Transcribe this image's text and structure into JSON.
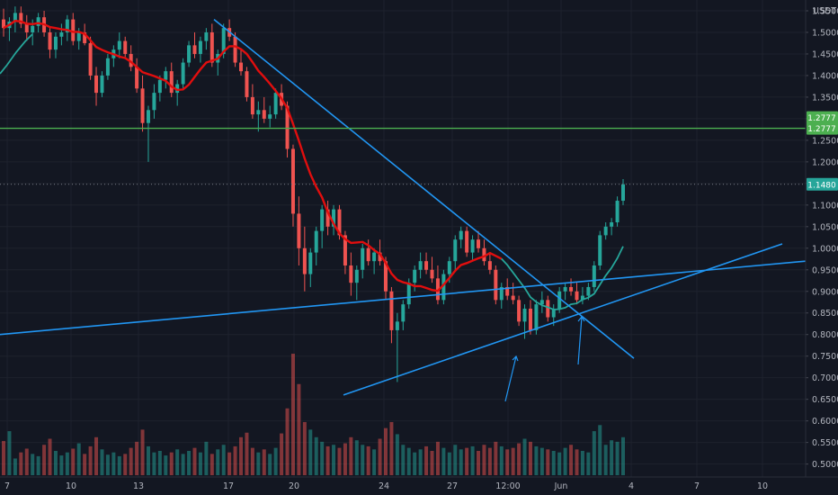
{
  "chart_data": {
    "type": "candlestick",
    "quote_unit": "USDT",
    "current_price": "1.1480",
    "horizontal_level": "1.2777",
    "colors": {
      "background": "#131722",
      "up": "#26a69a",
      "down": "#ef5350",
      "moving_average": "#e10e0e",
      "moving_average_2": "#26a69a",
      "trendline": "#2196f3",
      "level_line": "#4caf50",
      "price_tag": "#26a69a"
    },
    "y_ticks": [
      "1.5500",
      "1.5000",
      "1.4500",
      "1.4000",
      "1.3500",
      "1.3000",
      "1.2500",
      "1.2000",
      "1.1500",
      "1.1000",
      "1.0500",
      "1.0000",
      "0.9500",
      "0.9000",
      "0.8500",
      "0.8000",
      "0.7500",
      "0.7000",
      "0.6500",
      "0.6000",
      "0.5500",
      "0.5000"
    ],
    "x_ticks": [
      "7",
      "10",
      "13",
      "17",
      "20",
      "24",
      "27",
      "12:00",
      "Jun",
      "4",
      "7",
      "10"
    ],
    "ylim": [
      0.47,
      1.575
    ],
    "candles": [
      [
        1.53,
        1.555,
        1.49,
        1.51
      ],
      [
        1.51,
        1.535,
        1.48,
        1.525
      ],
      [
        1.525,
        1.56,
        1.5,
        1.545
      ],
      [
        1.545,
        1.56,
        1.51,
        1.52
      ],
      [
        1.52,
        1.54,
        1.48,
        1.5
      ],
      [
        1.5,
        1.53,
        1.47,
        1.515
      ],
      [
        1.515,
        1.545,
        1.5,
        1.535
      ],
      [
        1.535,
        1.55,
        1.49,
        1.5
      ],
      [
        1.5,
        1.51,
        1.44,
        1.46
      ],
      [
        1.46,
        1.5,
        1.44,
        1.49
      ],
      [
        1.49,
        1.52,
        1.47,
        1.5
      ],
      [
        1.5,
        1.54,
        1.48,
        1.53
      ],
      [
        1.53,
        1.545,
        1.47,
        1.48
      ],
      [
        1.48,
        1.51,
        1.46,
        1.5
      ],
      [
        1.5,
        1.52,
        1.47,
        1.475
      ],
      [
        1.475,
        1.49,
        1.39,
        1.4
      ],
      [
        1.4,
        1.42,
        1.33,
        1.36
      ],
      [
        1.36,
        1.41,
        1.35,
        1.4
      ],
      [
        1.4,
        1.45,
        1.39,
        1.44
      ],
      [
        1.44,
        1.47,
        1.42,
        1.46
      ],
      [
        1.46,
        1.5,
        1.44,
        1.48
      ],
      [
        1.48,
        1.49,
        1.44,
        1.45
      ],
      [
        1.45,
        1.47,
        1.41,
        1.42
      ],
      [
        1.42,
        1.44,
        1.36,
        1.37
      ],
      [
        1.37,
        1.4,
        1.27,
        1.29
      ],
      [
        1.29,
        1.33,
        1.2,
        1.32
      ],
      [
        1.32,
        1.38,
        1.3,
        1.36
      ],
      [
        1.36,
        1.4,
        1.34,
        1.39
      ],
      [
        1.39,
        1.42,
        1.37,
        1.41
      ],
      [
        1.41,
        1.43,
        1.35,
        1.36
      ],
      [
        1.36,
        1.39,
        1.33,
        1.38
      ],
      [
        1.38,
        1.44,
        1.37,
        1.43
      ],
      [
        1.43,
        1.48,
        1.42,
        1.47
      ],
      [
        1.47,
        1.5,
        1.44,
        1.45
      ],
      [
        1.45,
        1.49,
        1.43,
        1.48
      ],
      [
        1.48,
        1.51,
        1.46,
        1.5
      ],
      [
        1.5,
        1.52,
        1.42,
        1.43
      ],
      [
        1.43,
        1.46,
        1.4,
        1.45
      ],
      [
        1.45,
        1.52,
        1.44,
        1.51
      ],
      [
        1.51,
        1.53,
        1.48,
        1.49
      ],
      [
        1.49,
        1.5,
        1.42,
        1.43
      ],
      [
        1.43,
        1.46,
        1.4,
        1.41
      ],
      [
        1.41,
        1.42,
        1.34,
        1.35
      ],
      [
        1.35,
        1.38,
        1.3,
        1.31
      ],
      [
        1.31,
        1.34,
        1.27,
        1.32
      ],
      [
        1.32,
        1.35,
        1.29,
        1.3
      ],
      [
        1.3,
        1.33,
        1.28,
        1.31
      ],
      [
        1.31,
        1.37,
        1.3,
        1.36
      ],
      [
        1.36,
        1.38,
        1.32,
        1.33
      ],
      [
        1.33,
        1.34,
        1.21,
        1.23
      ],
      [
        1.23,
        1.24,
        1.05,
        1.08
      ],
      [
        1.08,
        1.12,
        0.96,
        1.0
      ],
      [
        1.0,
        1.05,
        0.9,
        0.94
      ],
      [
        0.94,
        1.0,
        0.91,
        0.99
      ],
      [
        0.99,
        1.05,
        0.96,
        1.04
      ],
      [
        1.04,
        1.1,
        1.0,
        1.09
      ],
      [
        1.09,
        1.11,
        1.03,
        1.05
      ],
      [
        1.05,
        1.1,
        1.03,
        1.09
      ],
      [
        1.09,
        1.1,
        1.02,
        1.03
      ],
      [
        1.03,
        1.04,
        0.94,
        0.96
      ],
      [
        0.96,
        0.99,
        0.89,
        0.92
      ],
      [
        0.92,
        0.96,
        0.88,
        0.95
      ],
      [
        0.95,
        1.01,
        0.93,
        1.0
      ],
      [
        1.0,
        1.02,
        0.96,
        0.97
      ],
      [
        0.97,
        1.0,
        0.94,
        0.99
      ],
      [
        0.99,
        1.02,
        0.96,
        0.97
      ],
      [
        0.97,
        0.98,
        0.88,
        0.9
      ],
      [
        0.9,
        0.91,
        0.78,
        0.81
      ],
      [
        0.81,
        0.85,
        0.69,
        0.83
      ],
      [
        0.83,
        0.88,
        0.81,
        0.87
      ],
      [
        0.87,
        0.93,
        0.86,
        0.92
      ],
      [
        0.92,
        0.96,
        0.9,
        0.95
      ],
      [
        0.95,
        0.99,
        0.93,
        0.97
      ],
      [
        0.97,
        0.99,
        0.94,
        0.95
      ],
      [
        0.95,
        0.98,
        0.92,
        0.93
      ],
      [
        0.93,
        0.96,
        0.87,
        0.88
      ],
      [
        0.88,
        0.95,
        0.87,
        0.94
      ],
      [
        0.94,
        0.98,
        0.92,
        0.97
      ],
      [
        0.97,
        1.03,
        0.95,
        1.02
      ],
      [
        1.02,
        1.05,
        1.0,
        1.04
      ],
      [
        1.04,
        1.05,
        0.98,
        0.99
      ],
      [
        0.99,
        1.03,
        0.97,
        1.02
      ],
      [
        1.02,
        1.04,
        0.99,
        1.0
      ],
      [
        1.0,
        1.02,
        0.96,
        0.97
      ],
      [
        0.97,
        0.99,
        0.94,
        0.95
      ],
      [
        0.95,
        0.96,
        0.87,
        0.88
      ],
      [
        0.88,
        0.92,
        0.86,
        0.91
      ],
      [
        0.91,
        0.93,
        0.88,
        0.89
      ],
      [
        0.89,
        0.92,
        0.87,
        0.88
      ],
      [
        0.88,
        0.89,
        0.82,
        0.83
      ],
      [
        0.83,
        0.87,
        0.79,
        0.86
      ],
      [
        0.86,
        0.88,
        0.8,
        0.81
      ],
      [
        0.81,
        0.88,
        0.8,
        0.87
      ],
      [
        0.87,
        0.9,
        0.85,
        0.88
      ],
      [
        0.88,
        0.89,
        0.83,
        0.84
      ],
      [
        0.84,
        0.87,
        0.82,
        0.86
      ],
      [
        0.86,
        0.91,
        0.85,
        0.9
      ],
      [
        0.9,
        0.92,
        0.88,
        0.91
      ],
      [
        0.91,
        0.93,
        0.89,
        0.9
      ],
      [
        0.9,
        0.92,
        0.87,
        0.88
      ],
      [
        0.88,
        0.91,
        0.87,
        0.89
      ],
      [
        0.89,
        0.92,
        0.88,
        0.91
      ],
      [
        0.91,
        0.97,
        0.9,
        0.96
      ],
      [
        0.96,
        1.04,
        0.95,
        1.03
      ],
      [
        1.03,
        1.06,
        1.02,
        1.05
      ],
      [
        1.05,
        1.07,
        1.03,
        1.06
      ],
      [
        1.06,
        1.12,
        1.05,
        1.11
      ],
      [
        1.11,
        1.16,
        1.1,
        1.148
      ]
    ],
    "volumes": [
      45,
      58,
      22,
      30,
      35,
      28,
      25,
      40,
      48,
      32,
      26,
      30,
      35,
      42,
      28,
      38,
      50,
      34,
      27,
      30,
      25,
      28,
      36,
      44,
      60,
      38,
      30,
      32,
      26,
      30,
      34,
      28,
      32,
      36,
      30,
      44,
      28,
      34,
      40,
      30,
      38,
      50,
      56,
      36,
      30,
      34,
      28,
      36,
      55,
      88,
      160,
      120,
      70,
      60,
      50,
      44,
      38,
      40,
      36,
      42,
      50,
      46,
      40,
      38,
      34,
      48,
      62,
      70,
      54,
      40,
      36,
      30,
      34,
      38,
      32,
      44,
      36,
      30,
      40,
      34,
      36,
      38,
      32,
      40,
      36,
      44,
      38,
      34,
      36,
      42,
      48,
      44,
      38,
      36,
      34,
      32,
      30,
      36,
      40,
      34,
      32,
      30,
      58,
      66,
      40,
      46,
      44,
      50
    ]
  }
}
